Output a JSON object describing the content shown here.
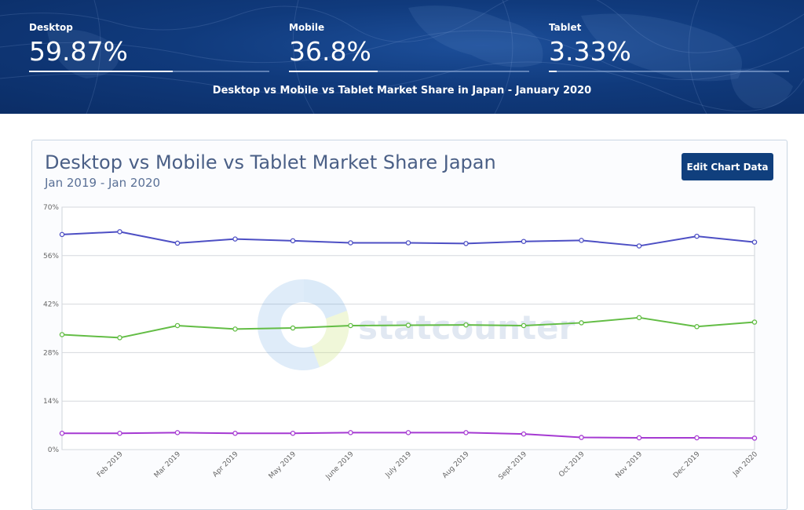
{
  "header": {
    "stats": [
      {
        "label": "Desktop",
        "value": "59.87%",
        "share": 0.5987
      },
      {
        "label": "Mobile",
        "value": "36.8%",
        "share": 0.368
      },
      {
        "label": "Tablet",
        "value": "3.33%",
        "share": 0.0333
      }
    ],
    "title": "Desktop vs Mobile vs Tablet Market Share in Japan - January 2020"
  },
  "card": {
    "edit_button_label": "Edit Chart Data",
    "watermark": "statcounter"
  },
  "chart_data": {
    "type": "line",
    "title": "Desktop vs Mobile vs Tablet Market Share Japan",
    "subtitle": "Jan 2019 - Jan 2020",
    "xlabel": "",
    "ylabel": "",
    "ylim": [
      0,
      70
    ],
    "yticks": [
      0,
      14,
      28,
      42,
      56,
      70
    ],
    "ytick_labels": [
      "0%",
      "14%",
      "28%",
      "42%",
      "56%",
      "70%"
    ],
    "categories": [
      "Jan 2019",
      "Feb 2019",
      "Mar 2019",
      "Apr 2019",
      "May 2019",
      "June 2019",
      "July 2019",
      "Aug 2019",
      "Sept 2019",
      "Oct 2019",
      "Nov 2019",
      "Dec 2019",
      "Jan 2020"
    ],
    "x_tick_labels": [
      "",
      "Feb 2019",
      "Mar 2019",
      "Apr 2019",
      "May 2019",
      "June 2019",
      "July 2019",
      "Aug 2019",
      "Sept 2019",
      "Oct 2019",
      "Nov 2019",
      "Dec 2019",
      "Jan 2020"
    ],
    "grid": true,
    "series": [
      {
        "name": "Desktop",
        "color": "#4d4fc4",
        "values": [
          62.1,
          62.9,
          59.6,
          60.8,
          60.3,
          59.7,
          59.7,
          59.5,
          60.1,
          60.4,
          58.8,
          61.6,
          59.9
        ]
      },
      {
        "name": "Mobile",
        "color": "#63bd45",
        "values": [
          33.2,
          32.3,
          35.8,
          34.8,
          35.1,
          35.8,
          35.9,
          36.0,
          35.8,
          36.6,
          38.1,
          35.5,
          36.8
        ]
      },
      {
        "name": "Tablet",
        "color": "#a53ad2",
        "values": [
          4.7,
          4.7,
          4.9,
          4.7,
          4.7,
          4.9,
          4.9,
          4.9,
          4.5,
          3.5,
          3.4,
          3.4,
          3.3
        ]
      }
    ]
  }
}
